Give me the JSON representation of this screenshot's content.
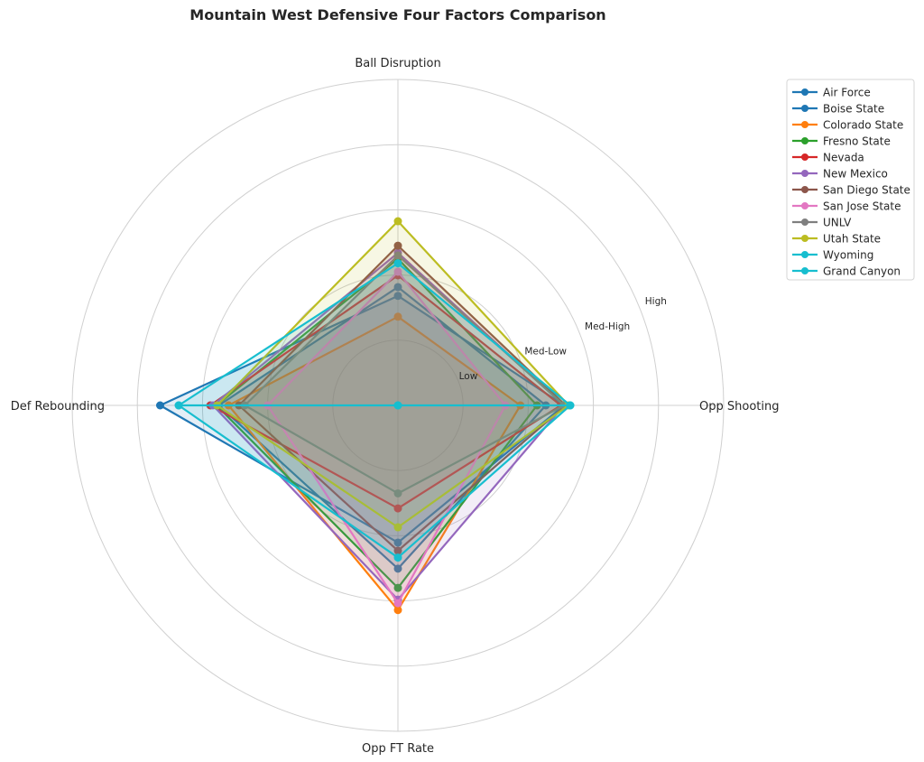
{
  "chart_data": {
    "type": "radar",
    "title": "Mountain West Defensive Four Factors Comparison",
    "axes": [
      "Ball Disruption",
      "Opp Shooting",
      "Opp FT Rate",
      "Def Rebounding"
    ],
    "rlim": [
      0,
      100
    ],
    "rticks": [
      20,
      40,
      60,
      80
    ],
    "rtick_labels": [
      "Low",
      "Med-Low",
      "Med-High",
      "High"
    ],
    "grid": true,
    "legend_position": "upper-right-outside",
    "series": [
      {
        "name": "Air Force",
        "color": "#1f77b4",
        "values": [
          33.6,
          51,
          42.1,
          73
        ]
      },
      {
        "name": "Boise State",
        "color": "#1f77b4",
        "values": [
          36.3,
          45.4,
          50.1,
          55
        ]
      },
      {
        "name": "Colorado State",
        "color": "#ff7f0e",
        "values": [
          27.2,
          37.6,
          62.8,
          52
        ]
      },
      {
        "name": "Fresno State",
        "color": "#2ca02c",
        "values": [
          45,
          42.7,
          56,
          55.7
        ]
      },
      {
        "name": "Nevada",
        "color": "#d62728",
        "values": [
          39.9,
          50,
          31.6,
          57.6
        ]
      },
      {
        "name": "New Mexico",
        "color": "#9467bd",
        "values": [
          46.8,
          51,
          59.6,
          56.8
        ]
      },
      {
        "name": "San Diego State",
        "color": "#8c564b",
        "values": [
          49,
          51.5,
          44.6,
          48.8
        ]
      },
      {
        "name": "San Jose State",
        "color": "#e377c2",
        "values": [
          41,
          33,
          60.7,
          40
        ]
      },
      {
        "name": "UNLV",
        "color": "#7f7f7f",
        "values": [
          46,
          51,
          27,
          47
        ]
      },
      {
        "name": "Utah State",
        "color": "#bcbd22",
        "values": [
          56.5,
          52.4,
          37.4,
          55.5
        ]
      },
      {
        "name": "Wyoming",
        "color": "#17becf",
        "values": [
          43.6,
          52.9,
          46.7,
          67.3
        ]
      },
      {
        "name": "Grand Canyon",
        "color": "#17becf",
        "values": [
          0,
          52.9,
          0,
          67.3
        ]
      }
    ]
  }
}
